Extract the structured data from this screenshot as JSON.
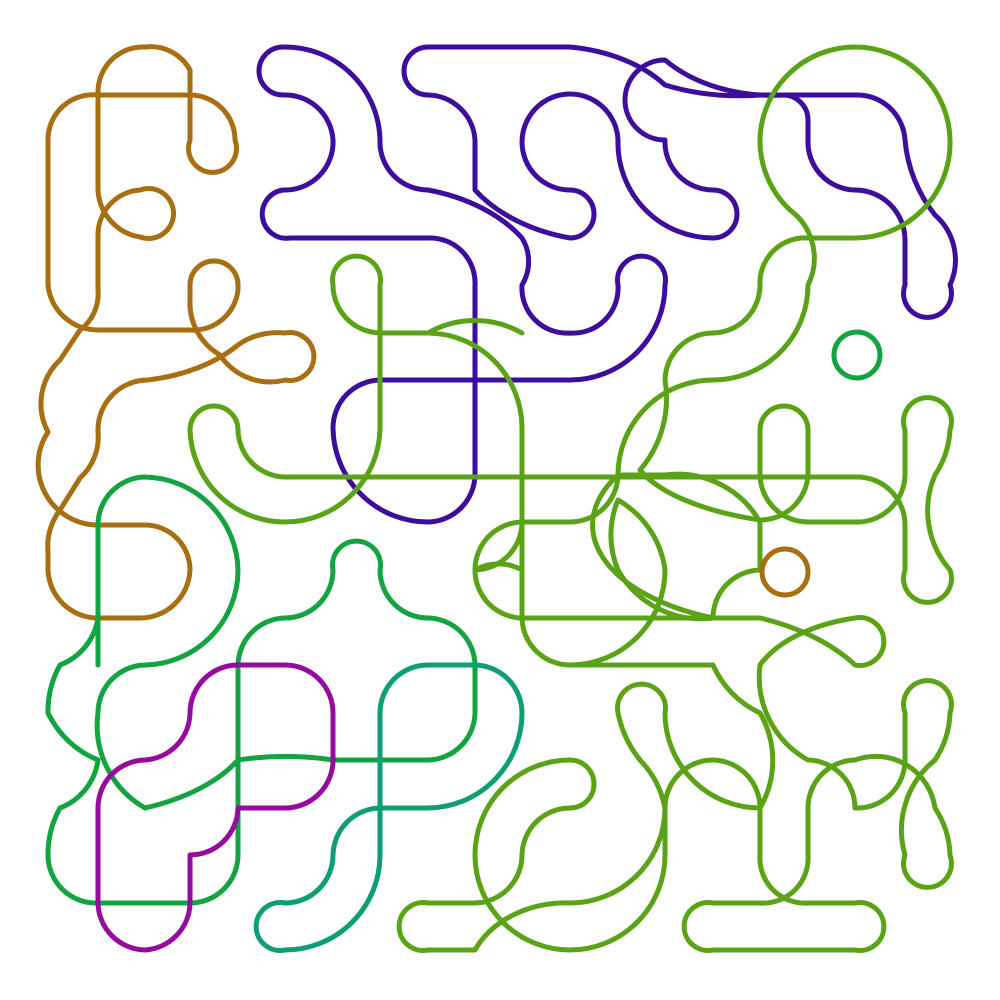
{
  "diagram": {
    "background": "#ffffff",
    "palette": {
      "ochre": "#a86e12",
      "indigo": "#3d0e9c",
      "lime": "#5ba316",
      "green": "#14a341",
      "teal": "#0d9e75",
      "magenta": "#960a9e"
    },
    "strands": [
      {
        "name": "ochre-strand",
        "color": "#a86e12"
      },
      {
        "name": "indigo-strand",
        "color": "#3d0e9c"
      },
      {
        "name": "lime-strand",
        "color": "#5ba316"
      },
      {
        "name": "green-strand",
        "color": "#14a341"
      },
      {
        "name": "teal-strand",
        "color": "#0d9e75"
      },
      {
        "name": "magenta-strand",
        "color": "#960a9e"
      }
    ],
    "rings": [
      {
        "name": "green-ring",
        "color": "#14a341"
      },
      {
        "name": "ochre-ring",
        "color": "#a86e12"
      }
    ]
  }
}
